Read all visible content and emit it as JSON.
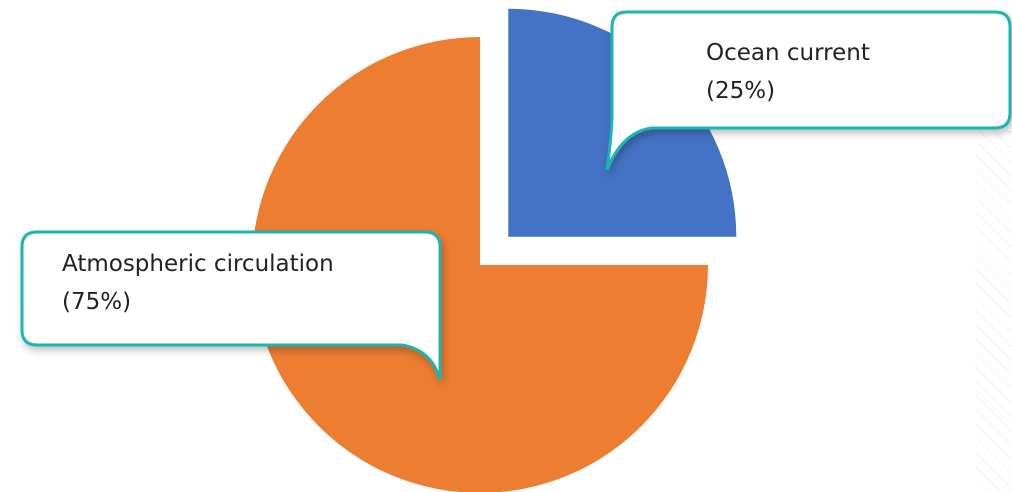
{
  "chart_data": {
    "type": "pie",
    "categories": [
      "Ocean current",
      "Atmospheric circulation"
    ],
    "values": [
      25,
      75
    ],
    "value_labels": [
      "(25%)",
      "(75%)"
    ],
    "colors": [
      "#4472c4",
      "#ed7d31"
    ]
  }
}
